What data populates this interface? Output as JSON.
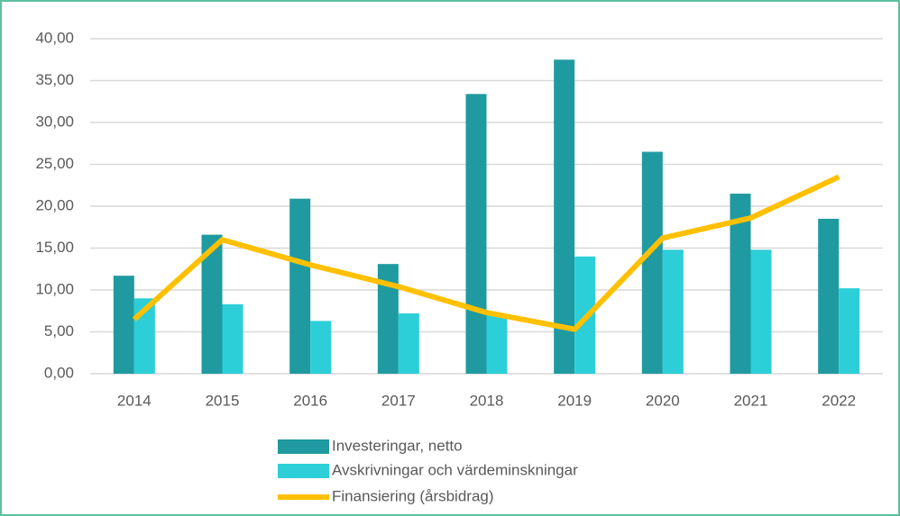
{
  "chart_data": {
    "type": "bar_line",
    "categories": [
      "2014",
      "2015",
      "2016",
      "2017",
      "2018",
      "2019",
      "2020",
      "2021",
      "2022"
    ],
    "series": [
      {
        "name": "Investeringar, netto",
        "type": "bar",
        "color": "#1f9aa0",
        "values": [
          11.7,
          16.6,
          20.9,
          13.1,
          33.4,
          37.5,
          26.5,
          21.5,
          18.5
        ]
      },
      {
        "name": "Avskrivningar och värdeminskningar",
        "type": "bar",
        "color": "#2ccfd8",
        "values": [
          9.0,
          8.3,
          6.3,
          7.2,
          7.0,
          14.0,
          14.8,
          14.8,
          10.2
        ]
      },
      {
        "name": "Finansiering (årsbidrag)",
        "type": "line",
        "color": "#ffc000",
        "values": [
          6.5,
          16.0,
          13.0,
          10.4,
          7.3,
          5.3,
          16.2,
          18.6,
          23.5
        ]
      }
    ],
    "ylim": [
      0,
      40
    ],
    "yticks": [
      {
        "value": 0,
        "label": "0,00"
      },
      {
        "value": 5,
        "label": "5,00"
      },
      {
        "value": 10,
        "label": "10,00"
      },
      {
        "value": 15,
        "label": "15,00"
      },
      {
        "value": 20,
        "label": "20,00"
      },
      {
        "value": 25,
        "label": "25,00"
      },
      {
        "value": 30,
        "label": "30,00"
      },
      {
        "value": 35,
        "label": "35,00"
      },
      {
        "value": 40,
        "label": "40,00"
      }
    ],
    "grid": true,
    "legend": "bottom"
  }
}
